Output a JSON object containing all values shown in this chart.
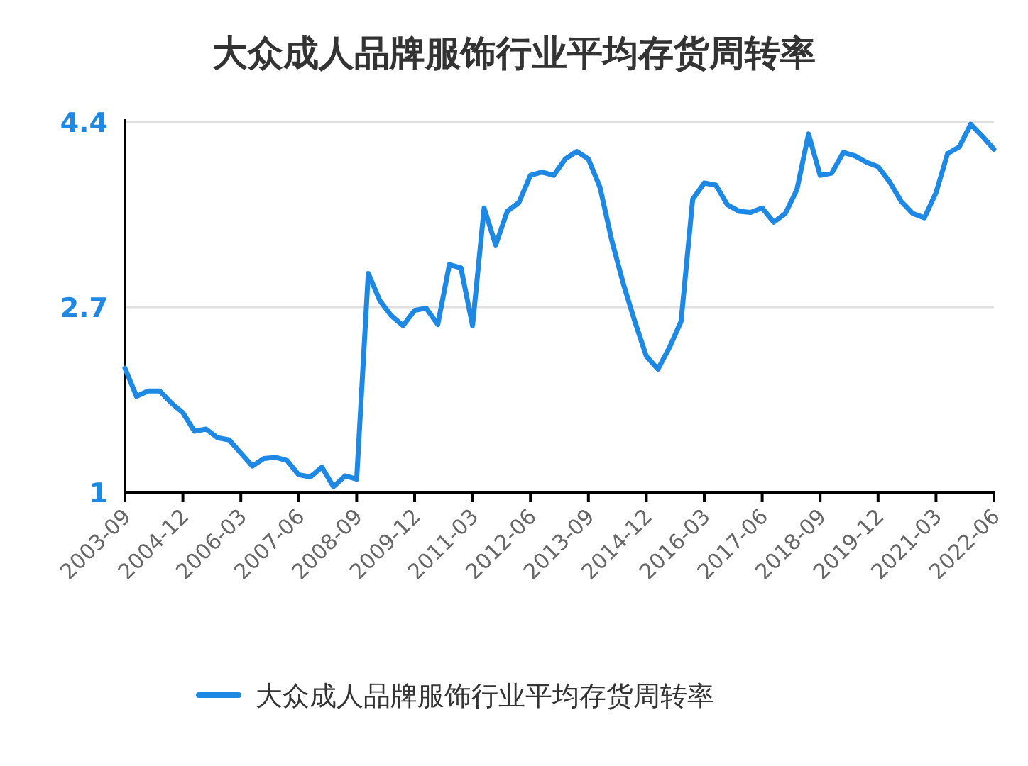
{
  "chart_data": {
    "type": "line",
    "title": "大众成人品牌服饰行业平均存货周转率",
    "categories": [
      "2003-09",
      null,
      null,
      null,
      null,
      "2004-12",
      null,
      null,
      null,
      null,
      "2006-03",
      null,
      null,
      null,
      null,
      "2007-06",
      null,
      null,
      null,
      null,
      "2008-09",
      null,
      null,
      null,
      null,
      "2009-12",
      null,
      null,
      null,
      null,
      "2011-03",
      null,
      null,
      null,
      null,
      "2012-06",
      null,
      null,
      null,
      null,
      "2013-09",
      null,
      null,
      null,
      null,
      "2014-12",
      null,
      null,
      null,
      null,
      "2016-03",
      null,
      null,
      null,
      null,
      "2017-06",
      null,
      null,
      null,
      null,
      "2018-09",
      null,
      null,
      null,
      null,
      "2019-12",
      null,
      null,
      null,
      null,
      "2021-03",
      null,
      null,
      null,
      null,
      "2022-06"
    ],
    "series": [
      {
        "name": "大众成人品牌服饰行业平均存货周转率",
        "color": "#1e88e5",
        "values": [
          2.14,
          1.88,
          1.93,
          1.93,
          1.82,
          1.73,
          1.56,
          1.58,
          1.5,
          1.48,
          1.36,
          1.24,
          1.31,
          1.32,
          1.29,
          1.16,
          1.14,
          1.23,
          1.05,
          1.15,
          1.12,
          3.01,
          2.76,
          2.62,
          2.53,
          2.67,
          2.69,
          2.54,
          3.09,
          3.06,
          2.53,
          3.61,
          3.27,
          3.58,
          3.66,
          3.91,
          3.94,
          3.91,
          4.06,
          4.13,
          4.06,
          3.8,
          3.32,
          2.92,
          2.57,
          2.25,
          2.13,
          2.33,
          2.57,
          3.69,
          3.84,
          3.82,
          3.64,
          3.58,
          3.57,
          3.61,
          3.48,
          3.56,
          3.78,
          4.29,
          3.91,
          3.93,
          4.12,
          4.09,
          4.03,
          3.99,
          3.85,
          3.67,
          3.56,
          3.52,
          3.75,
          4.11,
          4.17,
          4.38,
          4.27,
          4.15
        ]
      }
    ],
    "ylim": [
      1,
      4.4
    ],
    "yticks": [
      1,
      2.7,
      4.4
    ],
    "grid": "y",
    "legend": "bottom",
    "marker": "none",
    "line_style": "solid"
  }
}
